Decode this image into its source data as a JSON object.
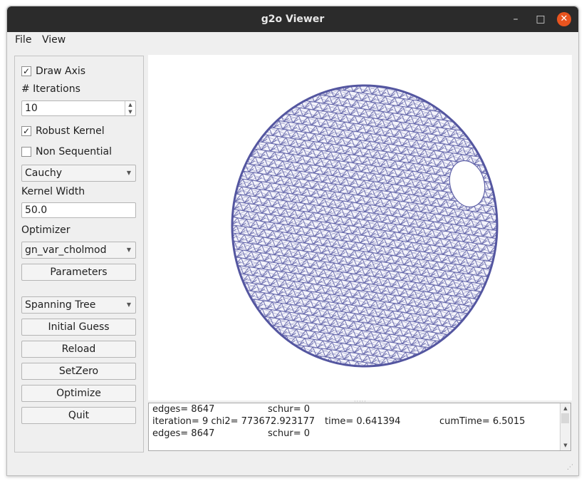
{
  "window": {
    "title": "g2o Viewer"
  },
  "menu": [
    "File",
    "View"
  ],
  "panel": {
    "draw_axis": {
      "label": "Draw Axis",
      "checked": true
    },
    "iterations_label": "# Iterations",
    "iterations_value": "10",
    "robust_kernel": {
      "label": "Robust Kernel",
      "checked": true
    },
    "non_sequential": {
      "label": "Non Sequential",
      "checked": false
    },
    "kernel_select": "Cauchy",
    "kernel_width_label": "Kernel Width",
    "kernel_width_value": "50.0",
    "optimizer_label": "Optimizer",
    "optimizer_select": "gn_var_cholmod",
    "parameters_button": "Parameters",
    "guess_select": "Spanning Tree",
    "initial_guess_button": "Initial Guess",
    "reload_button": "Reload",
    "setzero_button": "SetZero",
    "optimize_button": "Optimize",
    "quit_button": "Quit"
  },
  "console": {
    "lines": [
      {
        "a": "edges= 8647",
        "b": "schur= 0"
      },
      {
        "a": "iteration= 9 chi2= 773672.923177",
        "b": "time= 0.641394",
        "c": "cumTime= 6.5015"
      },
      {
        "a": "edges= 8647",
        "b": "schur= 0"
      }
    ]
  },
  "colors": {
    "mesh": "#6062a8",
    "titlebar": "#2b2b2b",
    "close": "#e9541f"
  }
}
